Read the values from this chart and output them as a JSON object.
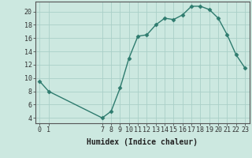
{
  "x": [
    0,
    1,
    7,
    8,
    9,
    10,
    11,
    12,
    13,
    14,
    15,
    16,
    17,
    18,
    19,
    20,
    21,
    22,
    23
  ],
  "y": [
    9.5,
    8.0,
    4.0,
    5.0,
    8.5,
    13.0,
    16.3,
    16.5,
    18.0,
    19.0,
    18.8,
    19.5,
    20.8,
    20.8,
    20.3,
    19.0,
    16.5,
    13.5,
    11.5
  ],
  "xlabel": "Humidex (Indice chaleur)",
  "xticks": [
    0,
    1,
    7,
    8,
    9,
    10,
    11,
    12,
    13,
    14,
    15,
    16,
    17,
    18,
    19,
    20,
    21,
    22,
    23
  ],
  "yticks": [
    4,
    6,
    8,
    10,
    12,
    14,
    16,
    18,
    20
  ],
  "ylim": [
    3.2,
    21.5
  ],
  "xlim": [
    -0.5,
    23.5
  ],
  "line_color": "#2e7b6e",
  "bg_color": "#cce8e0",
  "grid_color": "#aacfc8",
  "marker": "D",
  "marker_size": 2.5,
  "line_width": 1.0,
  "tick_fontsize": 6.0,
  "xlabel_fontsize": 7.0
}
